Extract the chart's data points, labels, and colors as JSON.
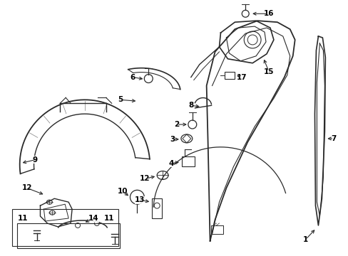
{
  "background_color": "#ffffff",
  "line_color": "#2a2a2a",
  "text_color": "#000000",
  "figsize": [
    4.89,
    3.6
  ],
  "dpi": 100,
  "label_fontsize": 7.5
}
